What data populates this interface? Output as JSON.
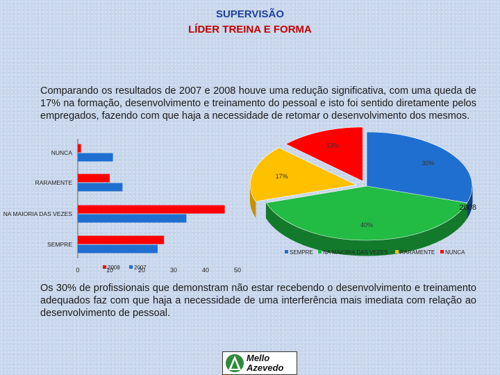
{
  "header": {
    "title_line1": "SUPERVISÃO",
    "title_line2": "LÍDER TREINA E FORMA"
  },
  "intro_text": "Comparando os resultados de 2007 e 2008 houve uma redução significativa, com uma queda de 17% na formação, desenvolvimento e treinamento do pessoal e isto foi sentido diretamente pelos empregados, fazendo com que haja a necessidade de retomar o desenvolvimento dos mesmos.",
  "conclusion_text": "Os 30% de profissionais que demonstram não estar recebendo o desenvolvimento e treinamento adequados faz com que haja a necessidade de uma interferência mais imediata com relação ao desenvolvimento de pessoal.",
  "logo": {
    "line1": "Mello",
    "line2": "Azevedo"
  },
  "colors": {
    "red": "#ff0000",
    "blue": "#1f6fd0",
    "green": "#22bb44",
    "yellow": "#ffc000",
    "title_blue": "#1f3f9a",
    "title_red": "#c00000"
  },
  "chart_data": [
    {
      "type": "bar",
      "orientation": "horizontal",
      "categories": [
        "NUNCA",
        "RARAMENTE",
        "NA MAIORIA DAS VEZES",
        "SEMPRE"
      ],
      "series": [
        {
          "name": "2007",
          "color": "#1f6fd0",
          "values": [
            11,
            14,
            34,
            25
          ]
        },
        {
          "name": "2008",
          "color": "#ff0000",
          "values": [
            1,
            10,
            46,
            27
          ]
        }
      ],
      "xticks": [
        "0",
        "10",
        "20",
        "30",
        "40",
        "50"
      ],
      "xlim": [
        0,
        50
      ],
      "legend": "bottom"
    },
    {
      "type": "pie",
      "title": "2008",
      "labels": [
        "SEMPRE",
        "NA MAIORIA DAS VEZES",
        "RARAMENTE",
        "NUNCA"
      ],
      "values": [
        30,
        40,
        17,
        13
      ],
      "value_labels": [
        "30%",
        "40%",
        "17%",
        "13%"
      ],
      "colors": [
        "#1f6fd0",
        "#22bb44",
        "#ffc000",
        "#ff0000"
      ],
      "legend": "bottom"
    }
  ]
}
